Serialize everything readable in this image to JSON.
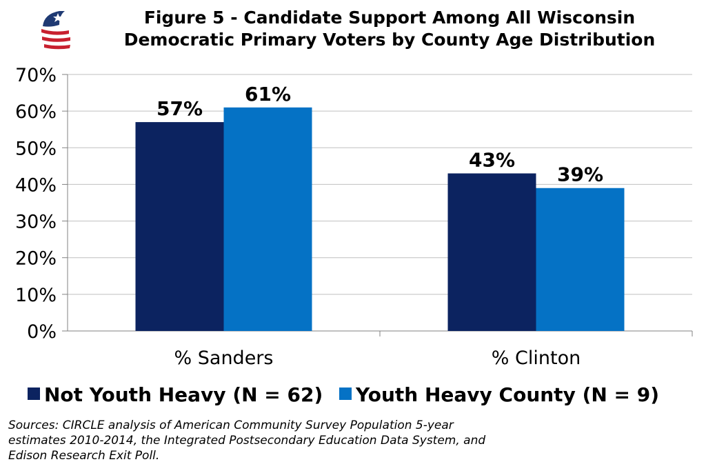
{
  "title": {
    "line1": "Figure 5 - Candidate Support Among All Wisconsin",
    "line2": "Democratic Primary Voters by County Age Distribution"
  },
  "source": {
    "line1": "Sources: CIRCLE analysis of  American Community Survey Population 5-year",
    "line2": "estimates 2010-2014, the Integrated Postsecondary Education Data System, and",
    "line3": "Edison Research Exit Poll."
  },
  "colors": {
    "not_youth_heavy": "#0C2360",
    "youth_heavy": "#0572C5",
    "logo_red": "#C8202F",
    "logo_blue": "#1F3A73"
  },
  "chart_data": {
    "type": "bar",
    "categories": [
      "% Sanders",
      "% Clinton"
    ],
    "series": [
      {
        "name": "Not Youth Heavy (N = 62)",
        "values": [
          57,
          43
        ],
        "labels": [
          "57%",
          "43%"
        ]
      },
      {
        "name": "Youth Heavy County (N = 9)",
        "values": [
          61,
          39
        ],
        "labels": [
          "61%",
          "39%"
        ]
      }
    ],
    "yticks": [
      "0%",
      "10%",
      "20%",
      "30%",
      "40%",
      "50%",
      "60%",
      "70%"
    ],
    "ylim": [
      0,
      70
    ],
    "grid": true,
    "legend": "bottom"
  }
}
